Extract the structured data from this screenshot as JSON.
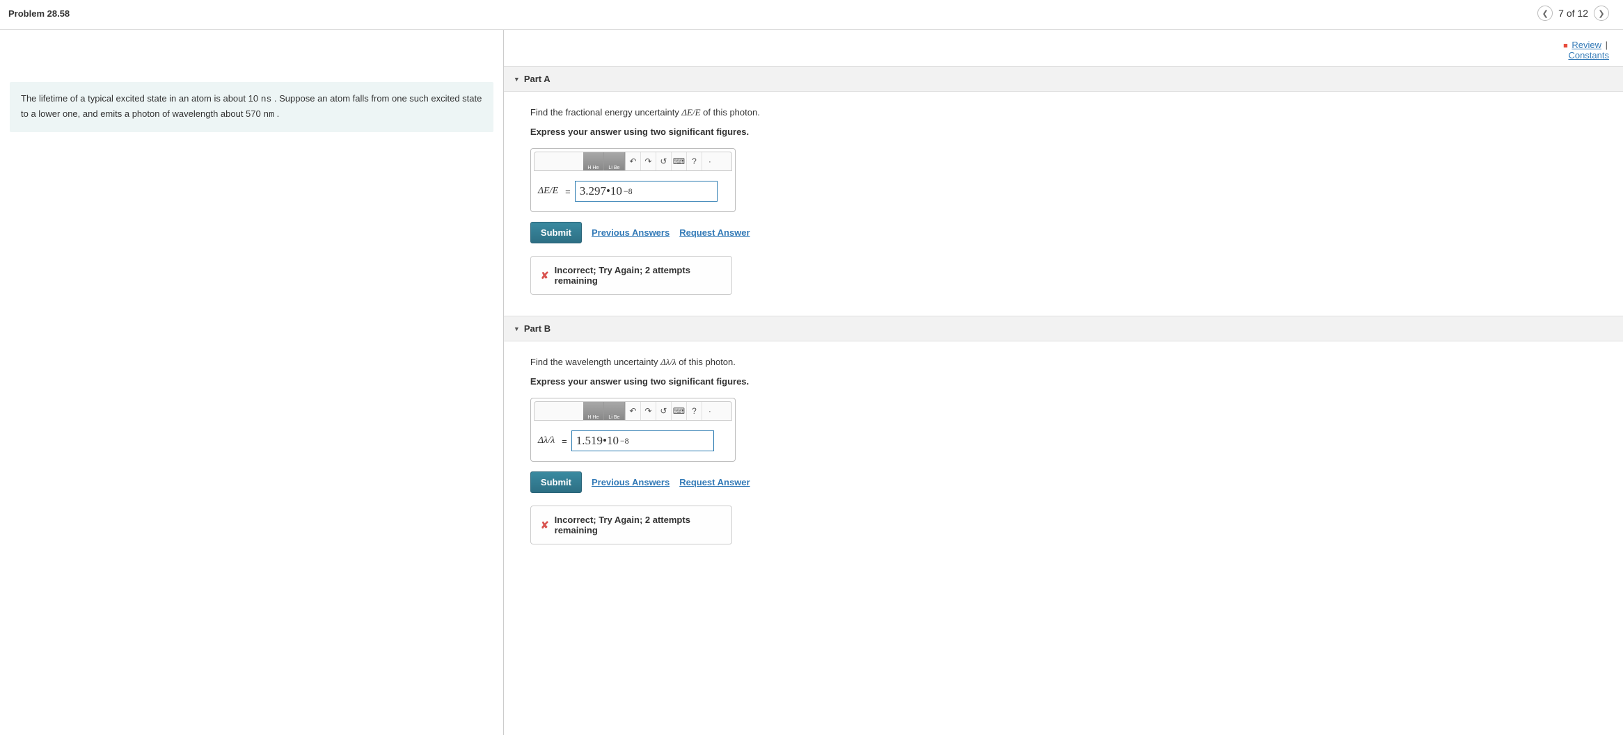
{
  "header": {
    "title": "Problem 28.58",
    "counter": "7 of 12"
  },
  "review_bar": {
    "review": "Review",
    "constants": "Constants"
  },
  "problem_text": {
    "line": "The lifetime of a typical excited state in an atom is about 10 ",
    "unit1": "ns",
    "mid": " . Suppose an atom falls from one such excited state to a lower one, and emits a photon of wavelength about 570 ",
    "unit2": "nm",
    "end": "   ."
  },
  "parts": [
    {
      "title": "Part A",
      "instruction_pre": "Find the fractional energy uncertainty ",
      "instruction_sym": "ΔE/E",
      "instruction_post": "   of this photon.",
      "express": "Express your answer using two significant figures.",
      "label": "ΔE/E",
      "value_base": "3.297",
      "value_dot": " • ",
      "value_ten": "10",
      "value_exp": "−8",
      "submit": "Submit",
      "prev_answers": "Previous Answers",
      "request": "Request Answer",
      "feedback": "Incorrect; Try Again; 2 attempts remaining"
    },
    {
      "title": "Part B",
      "instruction_pre": "Find the wavelength uncertainty ",
      "instruction_sym": "Δλ/λ",
      "instruction_post": "   of this photon.",
      "express": "Express your answer using two significant figures.",
      "label": "Δλ/λ",
      "value_base": "1.519",
      "value_dot": " • ",
      "value_ten": "10",
      "value_exp": "−8",
      "submit": "Submit",
      "prev_answers": "Previous Answers",
      "request": "Request Answer",
      "feedback": "Incorrect; Try Again; 2 attempts remaining"
    }
  ],
  "toolbar": {
    "pt1": "H He",
    "pt2": "Li Be",
    "undo": "↶",
    "redo": "↷",
    "reset": "↺",
    "keyboard": "⌨",
    "help": "?",
    "more": "·"
  },
  "colors": {
    "link": "#337ab7",
    "submit_bg": "#2d6f84",
    "error": "#d9534f",
    "box_bg": "#edf5f5"
  }
}
